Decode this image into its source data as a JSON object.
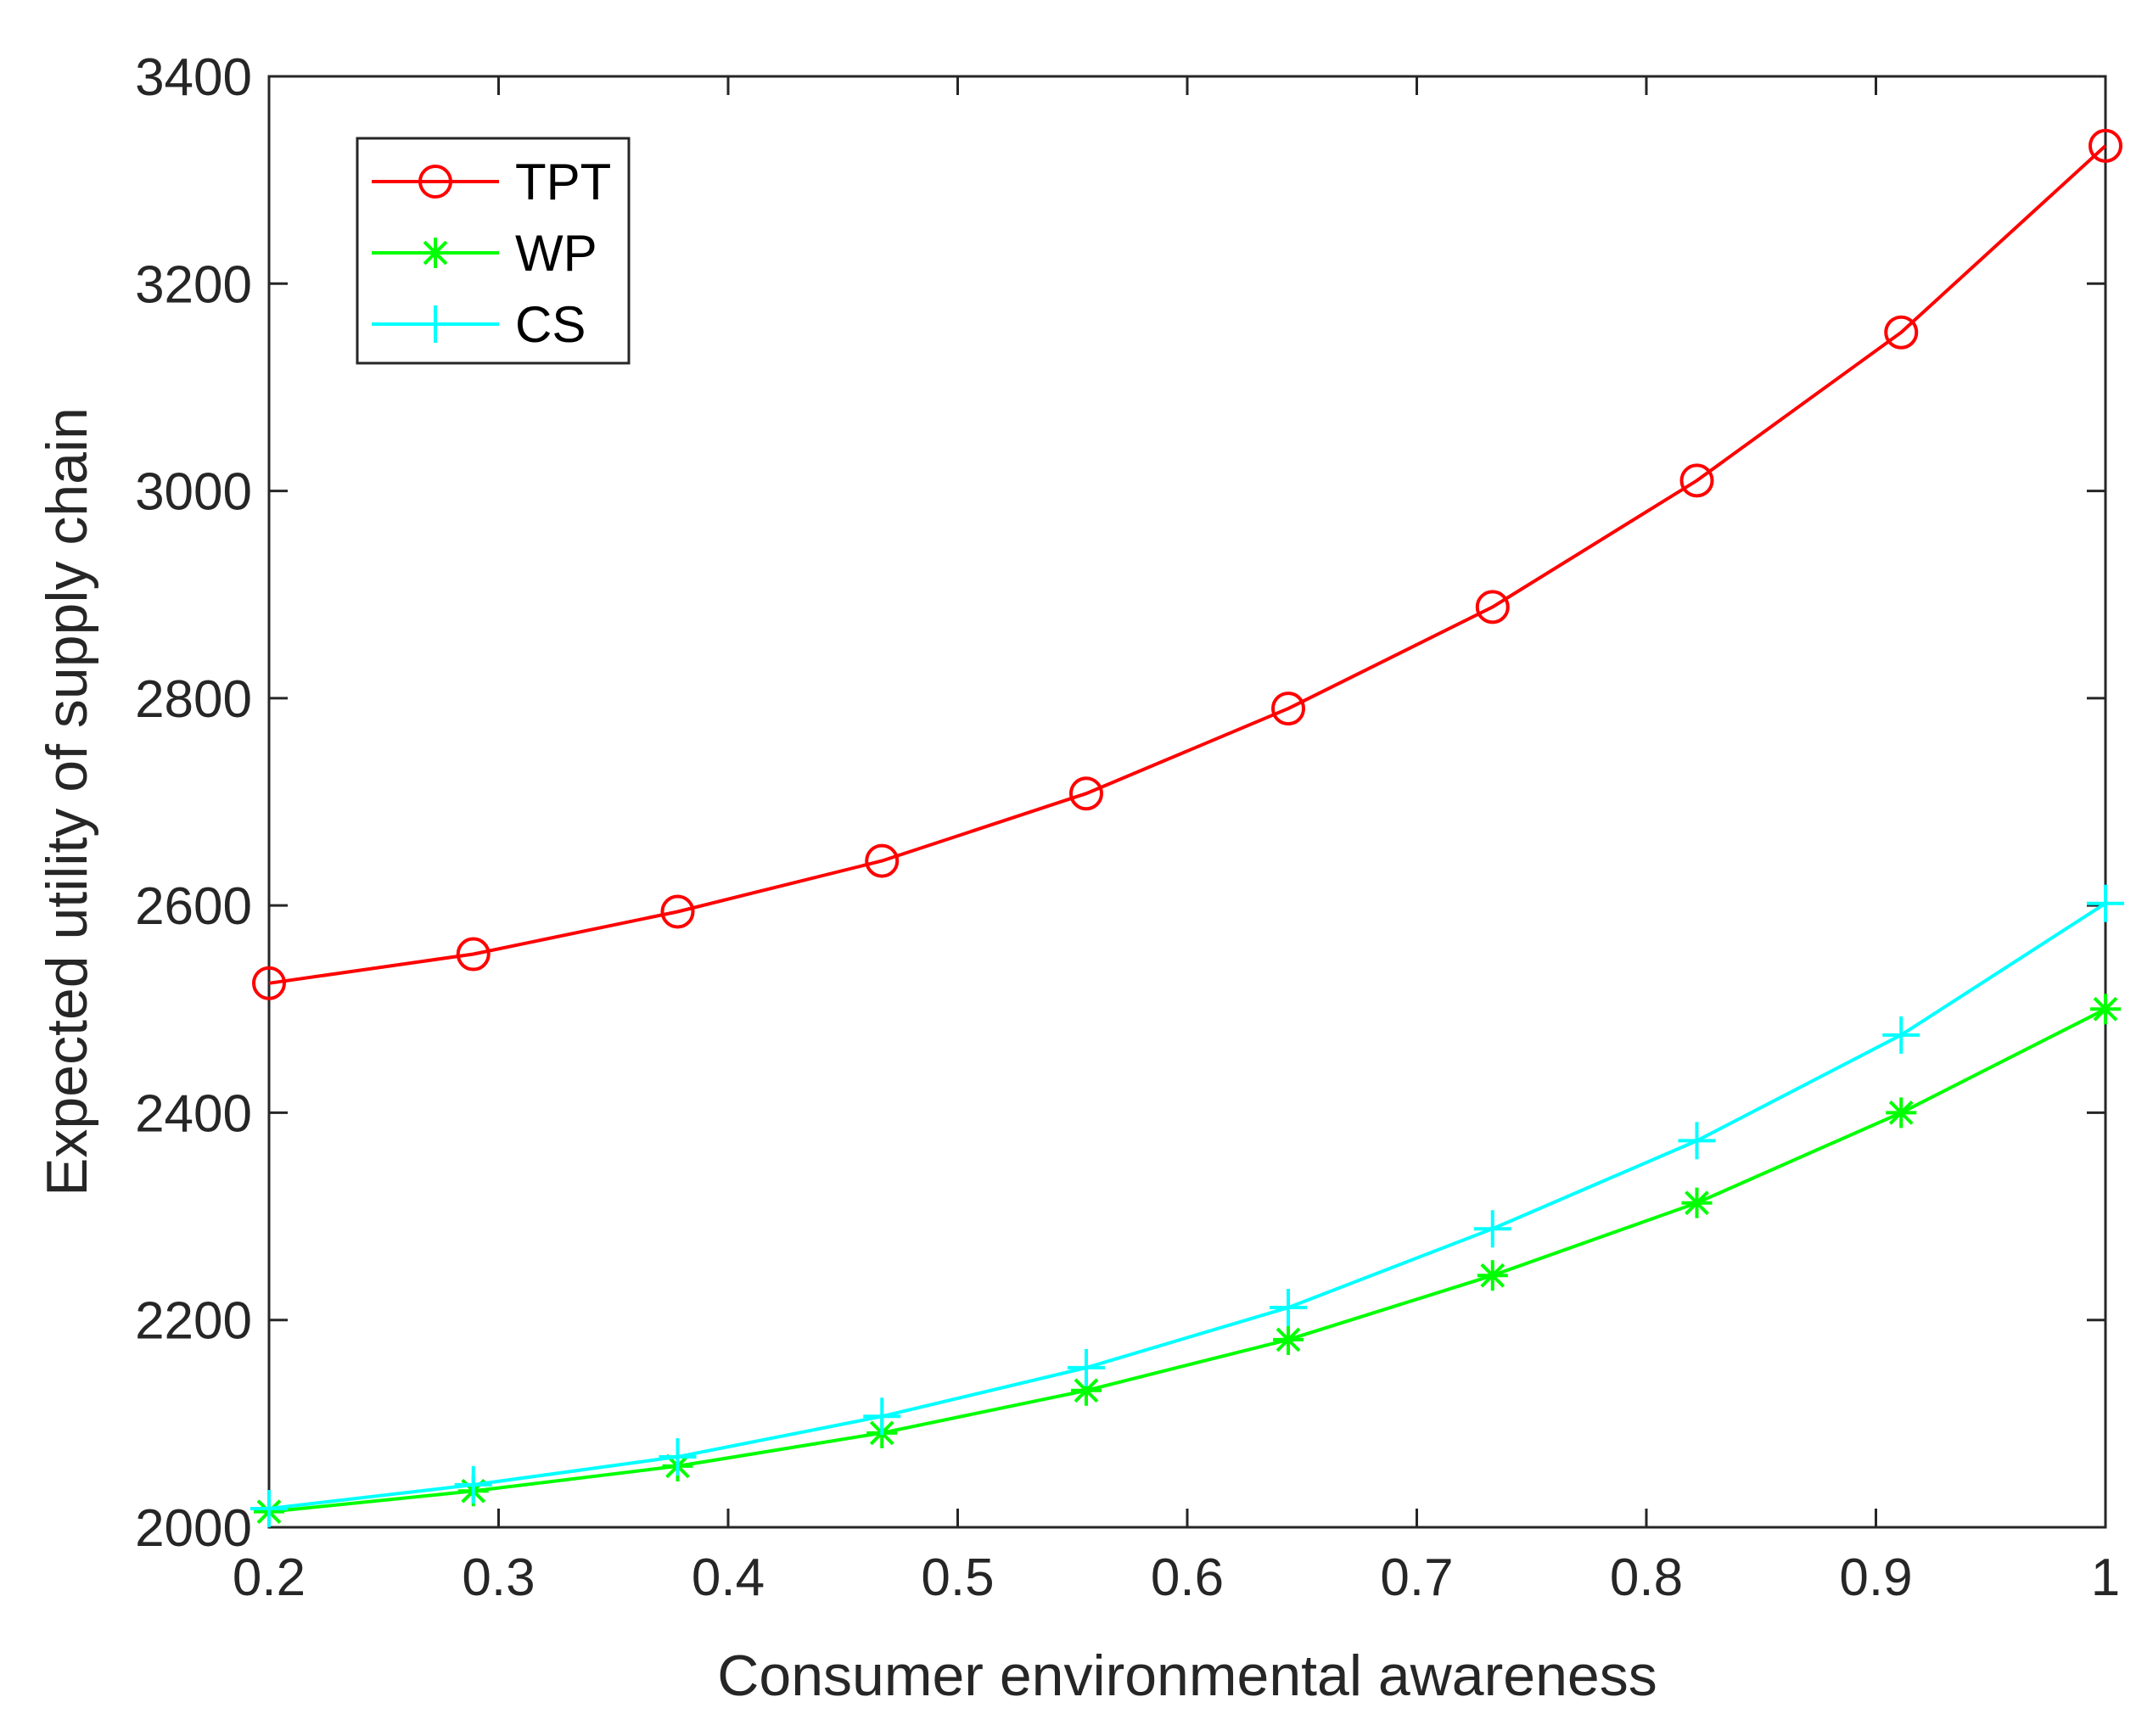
{
  "chart_data": {
    "type": "line",
    "title": "",
    "xlabel": "Consumer environmental awareness",
    "ylabel": "Expected utility of supply chain",
    "xlim": [
      0.2,
      1
    ],
    "ylim": [
      2000,
      3400
    ],
    "xticks": [
      0.2,
      0.3,
      0.4,
      0.5,
      0.6,
      0.7,
      0.8,
      0.9,
      1
    ],
    "xtick_labels": [
      "0.2",
      "0.3",
      "0.4",
      "0.5",
      "0.6",
      "0.7",
      "0.8",
      "0.9",
      "1"
    ],
    "yticks": [
      2000,
      2200,
      2400,
      2600,
      2800,
      3000,
      3200,
      3400
    ],
    "ytick_labels": [
      "2000",
      "2200",
      "2400",
      "2600",
      "2800",
      "3000",
      "3200",
      "3400"
    ],
    "grid": false,
    "legend_position": "top-left",
    "x": [
      0.2,
      0.289,
      0.378,
      0.467,
      0.556,
      0.644,
      0.733,
      0.822,
      0.911,
      1.0
    ],
    "series": [
      {
        "name": "TPT",
        "color": "#ff0000",
        "marker": "circle",
        "values": [
          2525,
          2553,
          2594,
          2643,
          2708,
          2790,
          2888,
          3010,
          3153,
          3333
        ]
      },
      {
        "name": "WP",
        "color": "#00ff00",
        "marker": "asterisk",
        "values": [
          2015,
          2035,
          2059,
          2091,
          2132,
          2181,
          2243,
          2313,
          2400,
          2500
        ]
      },
      {
        "name": "CS",
        "color": "#00ffff",
        "marker": "plus",
        "values": [
          2018,
          2041,
          2068,
          2107,
          2154,
          2212,
          2288,
          2373,
          2475,
          2602
        ]
      }
    ]
  }
}
